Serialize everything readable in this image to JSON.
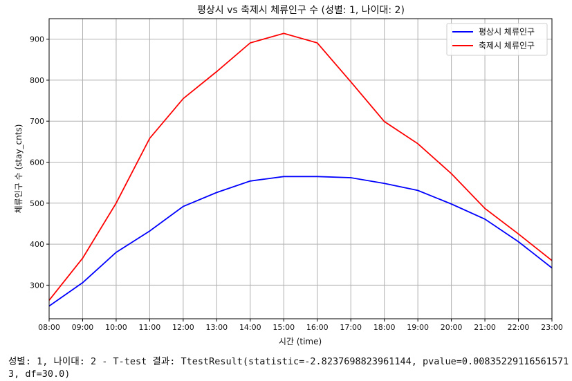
{
  "chart_data": {
    "type": "line",
    "title": "평상시 vs 축제시 체류인구 수 (성별: 1, 나이대: 2)",
    "xlabel": "시간 (time)",
    "ylabel": "체류인구 수 (stay_cnts)",
    "categories": [
      "08:00",
      "09:00",
      "10:00",
      "11:00",
      "12:00",
      "13:00",
      "14:00",
      "15:00",
      "16:00",
      "17:00",
      "18:00",
      "19:00",
      "20:00",
      "21:00",
      "22:00",
      "23:00"
    ],
    "ylim": [
      218,
      950
    ],
    "yticks": [
      300,
      400,
      500,
      600,
      700,
      800,
      900
    ],
    "grid": true,
    "legend_position": "top-right",
    "series": [
      {
        "name": "평상시 체류인구",
        "color": "#0000ff",
        "values": [
          249,
          306,
          380,
          432,
          492,
          526,
          554,
          565,
          565,
          562,
          548,
          531,
          498,
          461,
          406,
          342
        ]
      },
      {
        "name": "축제시 체류인구",
        "color": "#ff0000",
        "values": [
          263,
          366,
          500,
          658,
          755,
          821,
          891,
          914,
          891,
          796,
          699,
          645,
          572,
          487,
          425,
          360
        ]
      }
    ]
  },
  "caption": "성별: 1, 나이대: 2 - T-test 결과: TtestResult(statistic=-2.8237698823961144, pvalue=0.008352291165615713, df=30.0)"
}
